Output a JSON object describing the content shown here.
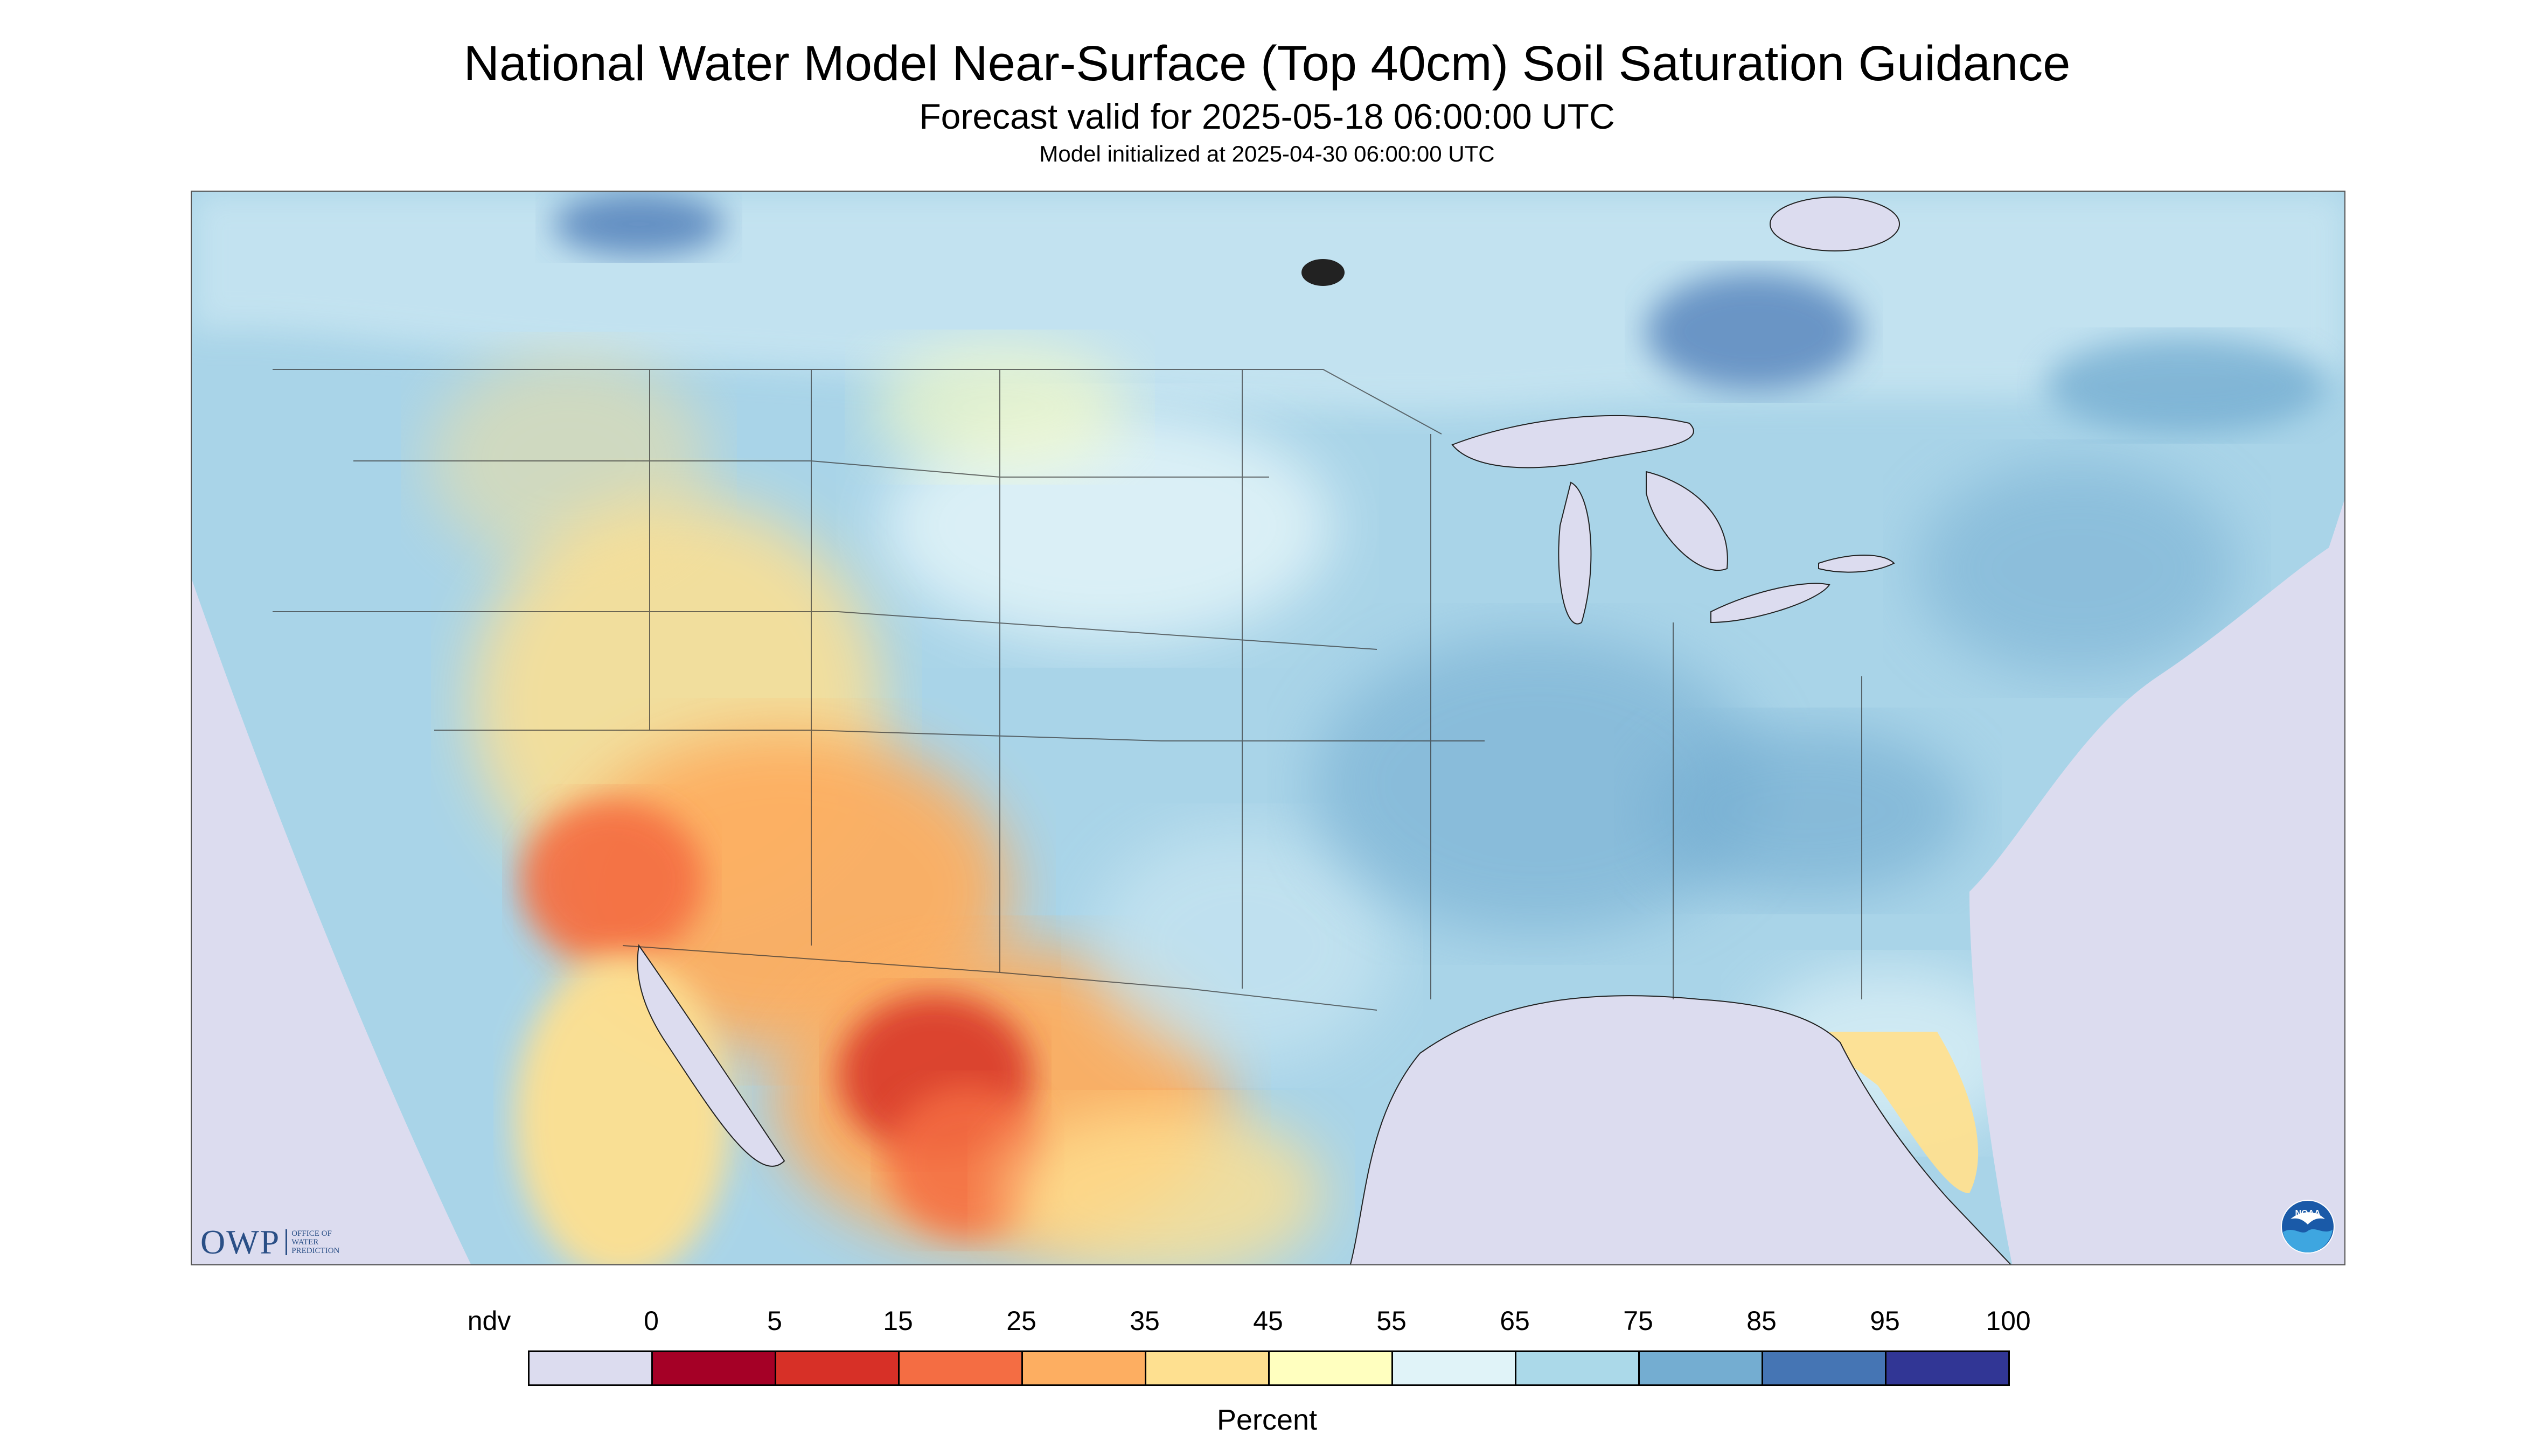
{
  "header": {
    "title": "National Water Model Near-Surface (Top 40cm) Soil Saturation Guidance",
    "forecast": "Forecast valid for 2025-05-18 06:00:00 UTC",
    "initialized": "Model initialized at 2025-04-30 06:00:00 UTC"
  },
  "map": {
    "region": "Continental United States",
    "colors": {
      "outside_domain": "#dcdcef",
      "water": "#dcdcef",
      "land_base": "#a9d4e8"
    },
    "regions": [
      {
        "name": "Southwest dry",
        "value_range": "25-45"
      },
      {
        "name": "Chihuahua very dry",
        "value_range": "5-15"
      },
      {
        "name": "Eastern US moist",
        "value_range": "75-95"
      }
    ]
  },
  "logos": {
    "owp": {
      "letters": "OWP",
      "lines": [
        "OFFICE OF",
        "WATER",
        "PREDICTION"
      ]
    },
    "noaa": {
      "letters": "NOAA"
    }
  },
  "legend": {
    "title": "Percent",
    "labels": [
      "ndv",
      "0",
      "5",
      "15",
      "25",
      "35",
      "45",
      "55",
      "65",
      "75",
      "85",
      "95",
      "100"
    ],
    "bins": [
      {
        "label": "ndv",
        "color": "#dcdcef"
      },
      {
        "label": "0-5",
        "color": "#a50026"
      },
      {
        "label": "5-15",
        "color": "#d73027"
      },
      {
        "label": "15-25",
        "color": "#f46d43"
      },
      {
        "label": "25-35",
        "color": "#fdae61"
      },
      {
        "label": "35-45",
        "color": "#fee090"
      },
      {
        "label": "45-55",
        "color": "#ffffbf"
      },
      {
        "label": "55-65",
        "color": "#e0f3f8"
      },
      {
        "label": "65-75",
        "color": "#abd9e9"
      },
      {
        "label": "75-85",
        "color": "#74add1"
      },
      {
        "label": "85-95",
        "color": "#4575b4"
      },
      {
        "label": "95-100",
        "color": "#313695"
      }
    ]
  }
}
